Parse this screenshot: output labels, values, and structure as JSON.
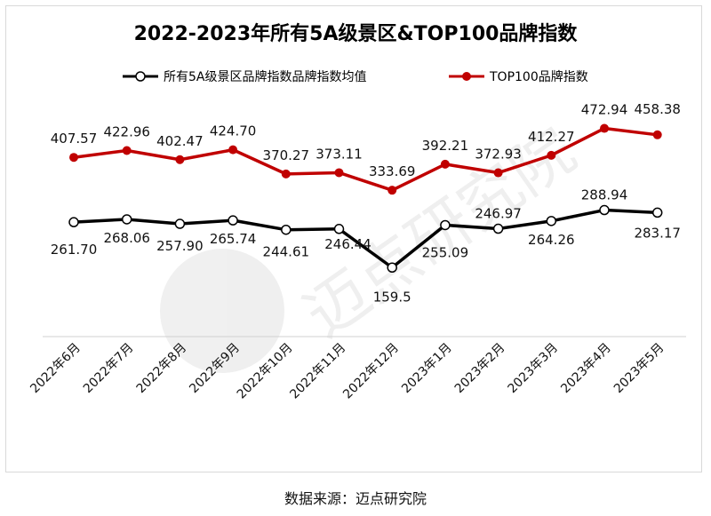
{
  "chart_data": {
    "type": "line",
    "title": "2022-2023年所有5A级景区&TOP100品牌指数",
    "categories": [
      "2022年6月",
      "2022年7月",
      "2022年8月",
      "2022年9月",
      "2022年10月",
      "2022年11月",
      "2022年12月",
      "2023年1月",
      "2023年2月",
      "2023年3月",
      "2023年4月",
      "2023年5月"
    ],
    "series": [
      {
        "name": "所有5A级景区品牌指数品牌指数均值",
        "color": "#000000",
        "marker": "hollow-circle",
        "values": [
          261.7,
          268.06,
          257.9,
          265.74,
          244.61,
          246.44,
          159.5,
          255.09,
          246.97,
          264.26,
          288.94,
          283.17
        ],
        "labels": [
          "261.70",
          "268.06",
          "257.90",
          "265.74",
          "244.61",
          "246.44",
          "159.5",
          "255.09",
          "246.97",
          "264.26",
          "288.94",
          "283.17"
        ]
      },
      {
        "name": "TOP100品牌指数",
        "color": "#c00000",
        "marker": "filled-circle",
        "values": [
          407.57,
          422.96,
          402.47,
          424.7,
          370.27,
          373.11,
          333.69,
          392.21,
          372.93,
          412.27,
          472.94,
          458.38
        ],
        "labels": [
          "407.57",
          "422.96",
          "402.47",
          "424.70",
          "370.27",
          "373.11",
          "333.69",
          "392.21",
          "372.93",
          "412.27",
          "472.94",
          "458.38"
        ]
      }
    ],
    "ylim": [
      0,
      500
    ],
    "xlabel": "",
    "ylabel": "",
    "grid": false,
    "legend_position": "top-center",
    "watermark": "迈点研究院 MEADIN ACADEMY"
  },
  "source": "数据来源：迈点研究院"
}
